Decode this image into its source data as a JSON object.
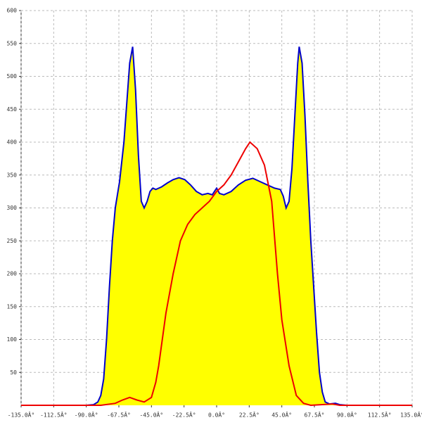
{
  "chart_data": {
    "type": "area-line",
    "xlim": [
      -135,
      135
    ],
    "ylim": [
      0,
      600
    ],
    "xticks": [
      {
        "value": -135,
        "label": "-135.0Â°"
      },
      {
        "value": -112.5,
        "label": "-112.5Â°"
      },
      {
        "value": -90,
        "label": "-90.0Â°"
      },
      {
        "value": -67.5,
        "label": "-67.5Â°"
      },
      {
        "value": -45,
        "label": "-45.0Â°"
      },
      {
        "value": -22.5,
        "label": "-22.5Â°"
      },
      {
        "value": 0,
        "label": "0.0Â°"
      },
      {
        "value": 22.5,
        "label": "22.5Â°"
      },
      {
        "value": 45,
        "label": "45.0Â°"
      },
      {
        "value": 67.5,
        "label": "67.5Â°"
      },
      {
        "value": 90,
        "label": "90.0Â°"
      },
      {
        "value": 112.5,
        "label": "112.5Â°"
      },
      {
        "value": 135,
        "label": "135.0Â°"
      }
    ],
    "yticks": [
      50,
      100,
      150,
      200,
      250,
      300,
      350,
      400,
      450,
      500,
      550,
      600
    ],
    "grid": true,
    "series": [
      {
        "color": "#0000cc",
        "fill": "#ffff00",
        "x": [
          -90,
          -85,
          -82,
          -80,
          -78,
          -76,
          -74,
          -72,
          -70,
          -67,
          -64,
          -62,
          -60,
          -58,
          -56,
          -54,
          -52,
          -50,
          -48,
          -46,
          -44,
          -42,
          -38,
          -34,
          -30,
          -26,
          -22,
          -18,
          -14,
          -10,
          -6,
          -3,
          0,
          2,
          5,
          10,
          15,
          20,
          25,
          30,
          35,
          40,
          44,
          46,
          48,
          50,
          52,
          54,
          56,
          57,
          59,
          61,
          63,
          65,
          67,
          69,
          71,
          73,
          75,
          78,
          82,
          85,
          90
        ],
        "values": [
          0,
          1,
          5,
          15,
          40,
          100,
          180,
          250,
          300,
          340,
          400,
          460,
          520,
          545,
          480,
          380,
          310,
          300,
          310,
          325,
          330,
          328,
          332,
          338,
          343,
          346,
          343,
          335,
          325,
          320,
          322,
          320,
          330,
          322,
          320,
          325,
          335,
          342,
          345,
          340,
          335,
          330,
          328,
          318,
          300,
          310,
          360,
          440,
          520,
          545,
          520,
          440,
          340,
          250,
          180,
          110,
          50,
          20,
          5,
          2,
          3,
          1,
          0
        ]
      },
      {
        "color": "#ee0000",
        "x": [
          -135,
          -80,
          -70,
          -65,
          -60,
          -55,
          -50,
          -45,
          -42,
          -40,
          -35,
          -30,
          -25,
          -20,
          -15,
          -10,
          -5,
          0,
          5,
          10,
          15,
          20,
          23,
          28,
          33,
          38,
          42,
          45,
          50,
          55,
          60,
          65,
          80,
          85,
          135
        ],
        "values": [
          0,
          0,
          3,
          8,
          12,
          8,
          5,
          12,
          35,
          60,
          140,
          200,
          250,
          275,
          290,
          300,
          310,
          325,
          335,
          350,
          370,
          390,
          400,
          390,
          365,
          310,
          200,
          130,
          60,
          15,
          3,
          0,
          2,
          0,
          0
        ]
      }
    ]
  }
}
